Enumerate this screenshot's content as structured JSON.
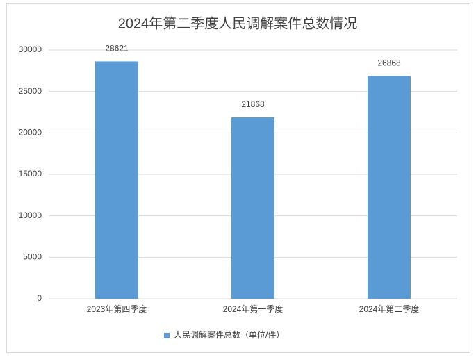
{
  "chart_data": {
    "type": "bar",
    "title": "2024年第二季度人民调解案件总数情况",
    "categories": [
      "2023年第四季度",
      "2024年第一季度",
      "2024年第二季度"
    ],
    "series": [
      {
        "name": "人民调解案件总数（单位/件）",
        "color": "#5b9bd5",
        "values": [
          28621,
          21868,
          26868
        ]
      }
    ],
    "ylim": [
      0,
      30000
    ],
    "yticks": [
      0,
      5000,
      10000,
      15000,
      20000,
      25000,
      30000
    ],
    "grid": true,
    "legend": "bottom"
  }
}
